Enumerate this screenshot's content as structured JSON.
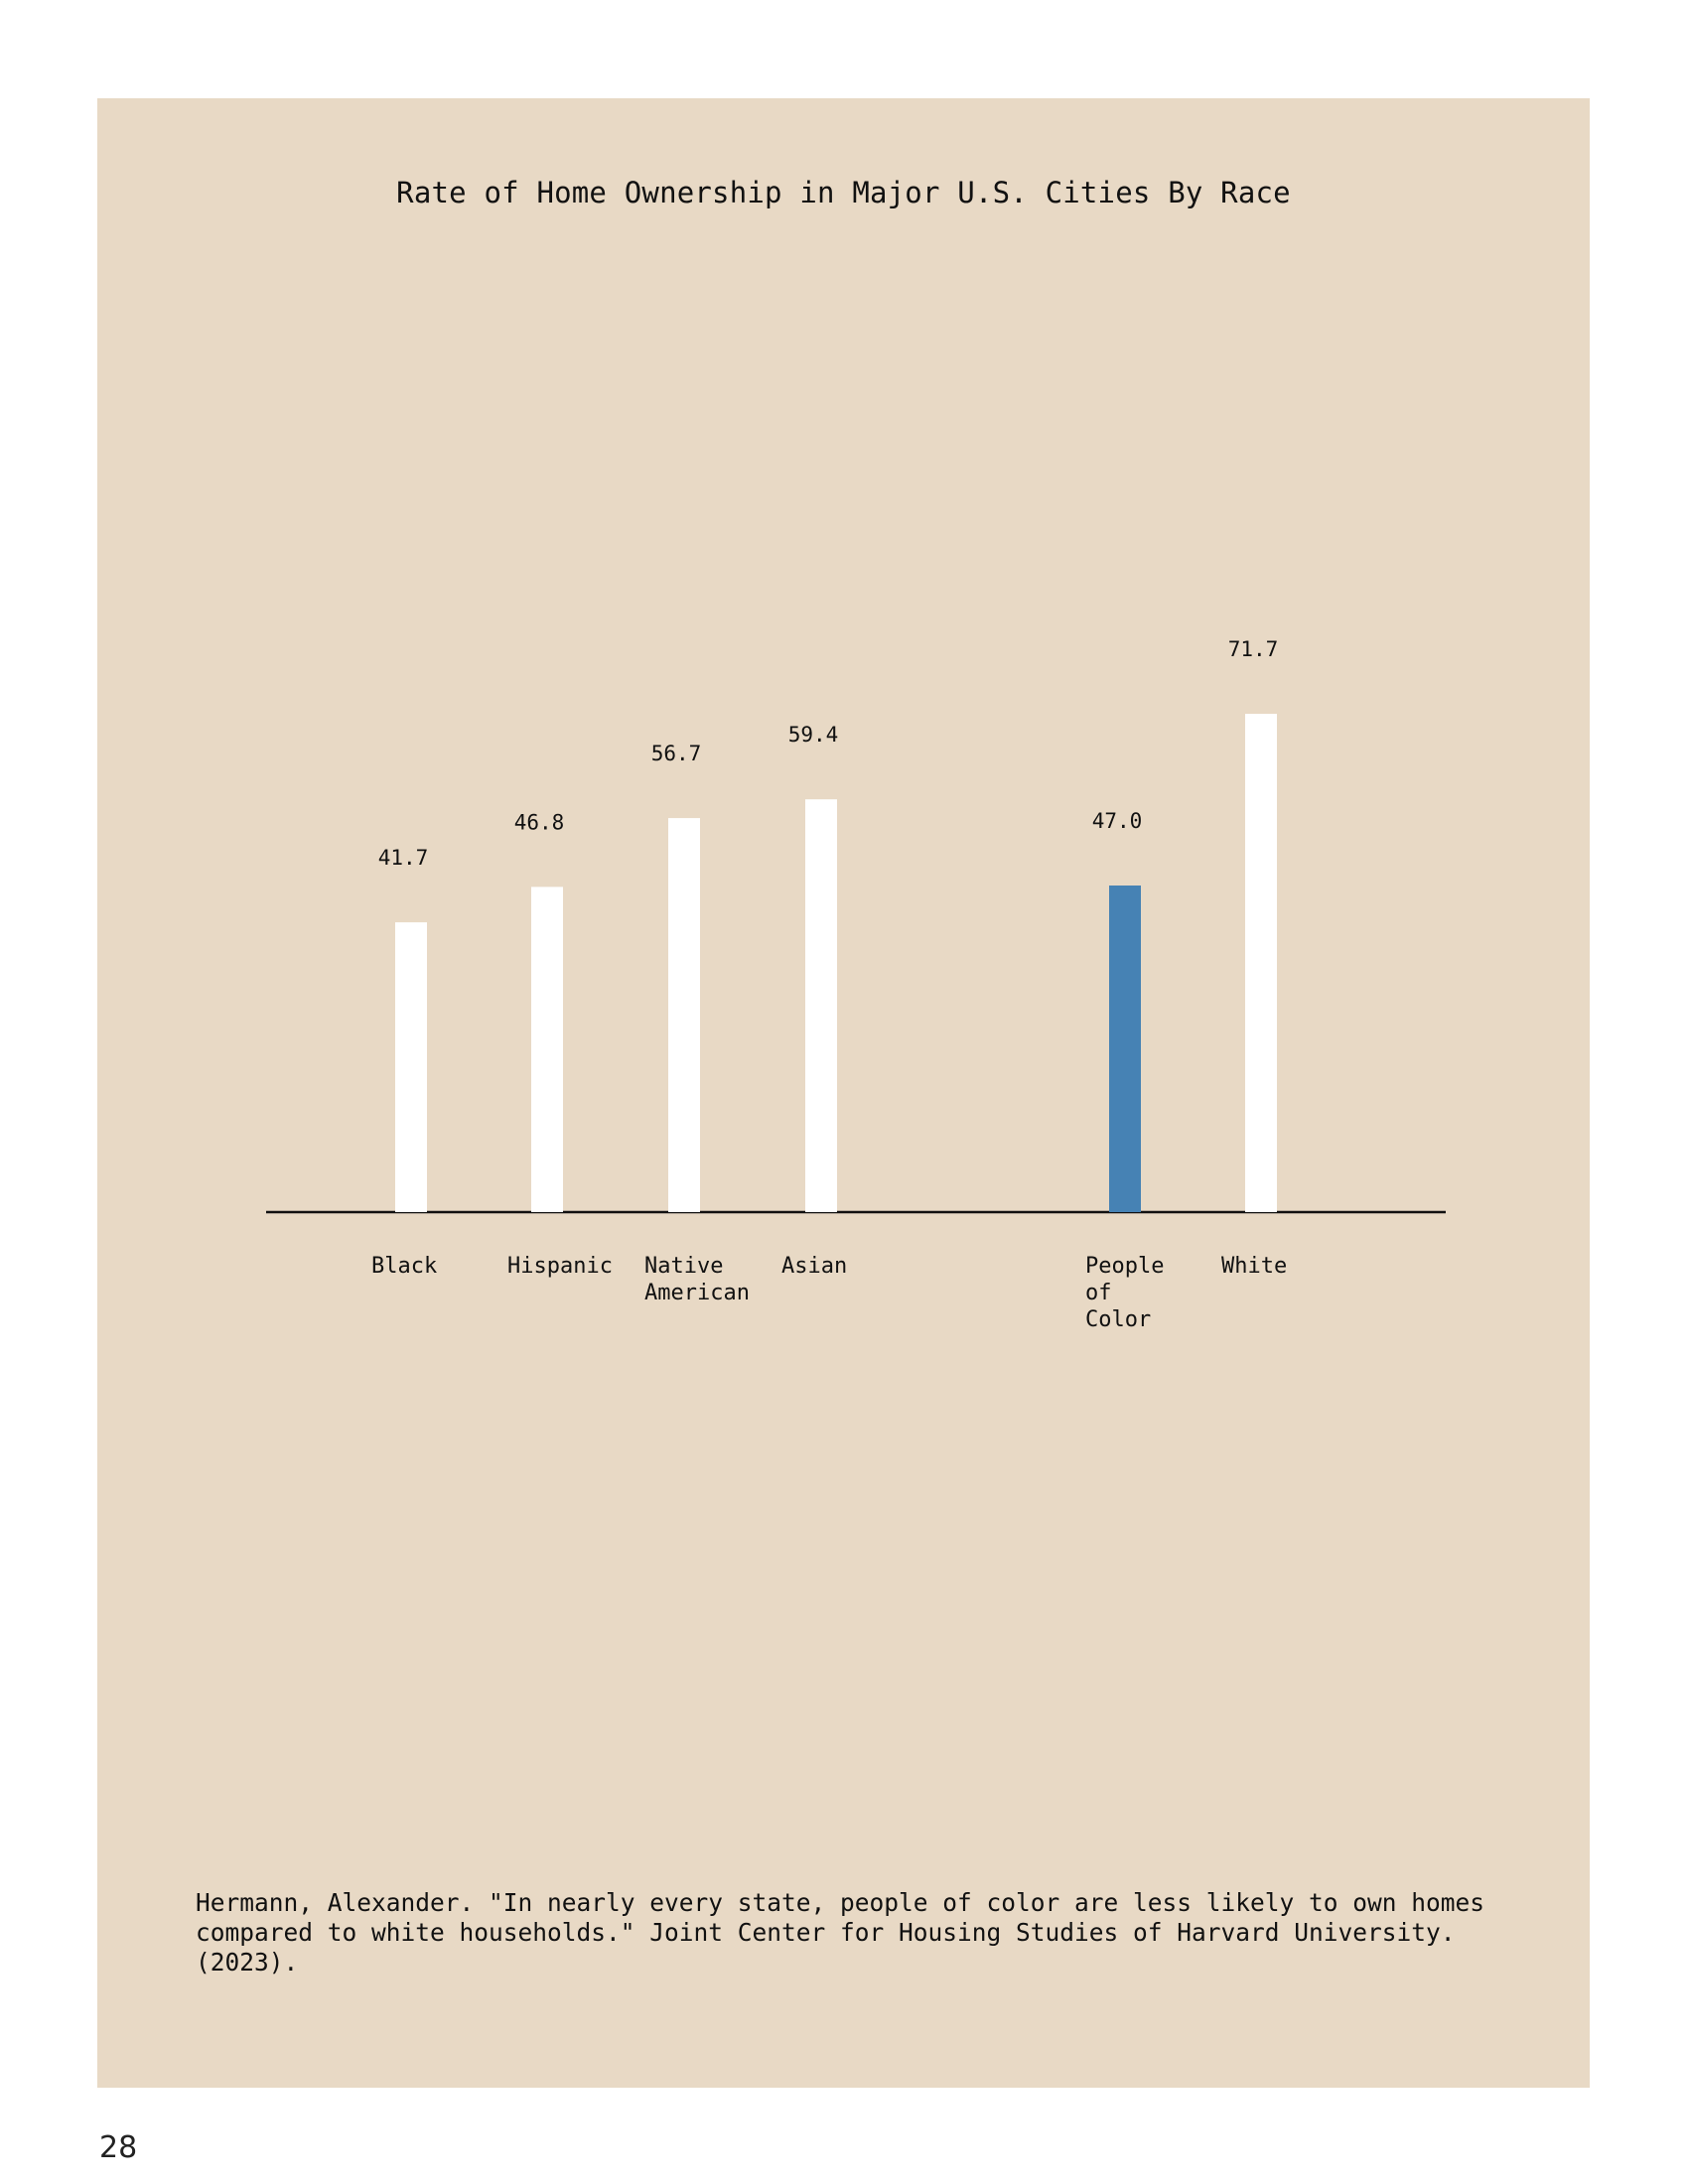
{
  "page": {
    "number": "28",
    "background_color": "#e8d9c5"
  },
  "chart_data": {
    "type": "bar",
    "title": "Rate of Home Ownership in Major U.S. Cities By Race",
    "xlabel": "",
    "ylabel": "",
    "categories": [
      "Black",
      "Hispanic",
      "Native American",
      "Asian",
      "People of Color",
      "White"
    ],
    "category_label_lines": [
      [
        "Black"
      ],
      [
        "Hispanic"
      ],
      [
        "Native",
        "American"
      ],
      [
        "Asian"
      ],
      [
        "People",
        "of",
        "Color"
      ],
      [
        "White"
      ]
    ],
    "values": [
      41.7,
      46.8,
      56.7,
      59.4,
      47.0,
      71.7
    ],
    "value_labels": [
      "41.7",
      "46.8",
      "56.7",
      "59.4",
      "47.0",
      "71.7"
    ],
    "bar_colors": [
      "#ffffff",
      "#ffffff",
      "#ffffff",
      "#ffffff",
      "#4682b4",
      "#ffffff"
    ],
    "highlight_color": "#4682b4",
    "default_bar_color": "#ffffff",
    "ylim": [
      0,
      100
    ],
    "grid": false,
    "legend": false
  },
  "citation": "Hermann, Alexander. \"In nearly every state, people of color are less likely to own homes compared to white households.\" Joint Center for Housing Studies of Harvard University. (2023)."
}
